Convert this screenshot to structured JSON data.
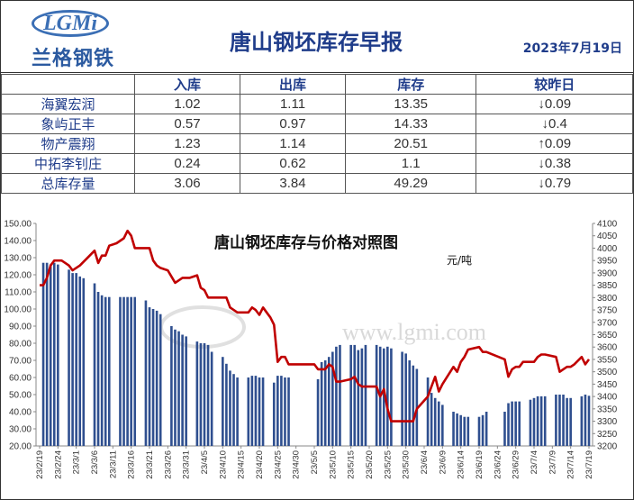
{
  "header": {
    "logo_text": "LGMi",
    "logo_cn": "兰格钢铁",
    "title": "唐山钢坯库存早报",
    "date": "2023年7月19日"
  },
  "table": {
    "columns": [
      "",
      "入库",
      "出库",
      "库存",
      "较昨日"
    ],
    "rows": [
      {
        "name": "海翼宏润",
        "in": "1.02",
        "out": "1.11",
        "stock": "13.35",
        "dir": "down",
        "arrow": "↓",
        "change": "0.09"
      },
      {
        "name": "象屿正丰",
        "in": "0.57",
        "out": "0.97",
        "stock": "14.33",
        "dir": "down",
        "arrow": "↓",
        "change": "0.4"
      },
      {
        "name": "物产震翔",
        "in": "1.23",
        "out": "1.14",
        "stock": "20.51",
        "dir": "up",
        "arrow": "↑",
        "change": "0.09"
      },
      {
        "name": "中拓李钊庄",
        "in": "0.24",
        "out": "0.62",
        "stock": "1.1",
        "dir": "down",
        "arrow": "↓",
        "change": "0.38"
      },
      {
        "name": "总库存量",
        "in": "3.06",
        "out": "3.84",
        "stock": "49.29",
        "dir": "down",
        "arrow": "↓",
        "change": "0.79"
      }
    ]
  },
  "chart_data": {
    "type": "bar+line",
    "title": "唐山钢坯库存与价格对照图",
    "y2_unit": "元/吨",
    "watermark": "www.lgmi.com",
    "ylim": [
      20,
      150
    ],
    "y_ticks": [
      20,
      30,
      40,
      50,
      60,
      70,
      80,
      90,
      100,
      110,
      120,
      130,
      140,
      150
    ],
    "y2lim": [
      3200,
      4100
    ],
    "y2_ticks": [
      3200,
      3250,
      3300,
      3350,
      3400,
      3450,
      3500,
      3550,
      3600,
      3650,
      3700,
      3750,
      3800,
      3850,
      3900,
      3950,
      4000,
      4050,
      4100
    ],
    "x_tick_labels": [
      "23/2/19",
      "23/2/24",
      "23/3/1",
      "23/3/6",
      "23/3/11",
      "23/3/16",
      "23/3/21",
      "23/3/26",
      "23/3/31",
      "23/4/5",
      "23/4/10",
      "23/4/15",
      "23/4/20",
      "23/4/25",
      "23/4/30",
      "23/5/5",
      "23/5/10",
      "23/5/15",
      "23/5/20",
      "23/5/25",
      "23/5/30",
      "23/6/4",
      "23/6/9",
      "23/6/14",
      "23/6/19",
      "23/6/24",
      "23/6/29",
      "23/7/4",
      "23/7/9",
      "23/7/14",
      "23/7/19"
    ],
    "x_start": "2023-02-19",
    "x_end": "2023-07-19",
    "bar_color": "#2f4f8f",
    "line_color": "#c00000",
    "bars": [
      [
        "2023-02-20",
        127
      ],
      [
        "2023-02-21",
        127
      ],
      [
        "2023-02-22",
        126
      ],
      [
        "2023-02-23",
        127
      ],
      [
        "2023-02-24",
        126
      ],
      [
        "2023-02-27",
        123
      ],
      [
        "2023-02-28",
        121
      ],
      [
        "2023-03-01",
        121
      ],
      [
        "2023-03-02",
        119
      ],
      [
        "2023-03-03",
        118
      ],
      [
        "2023-03-06",
        115
      ],
      [
        "2023-03-07",
        110
      ],
      [
        "2023-03-08",
        108
      ],
      [
        "2023-03-09",
        107
      ],
      [
        "2023-03-10",
        107
      ],
      [
        "2023-03-13",
        107
      ],
      [
        "2023-03-14",
        107
      ],
      [
        "2023-03-15",
        107
      ],
      [
        "2023-03-16",
        107
      ],
      [
        "2023-03-17",
        107
      ],
      [
        "2023-03-20",
        105
      ],
      [
        "2023-03-21",
        101
      ],
      [
        "2023-03-22",
        100
      ],
      [
        "2023-03-23",
        99
      ],
      [
        "2023-03-24",
        97
      ],
      [
        "2023-03-27",
        90
      ],
      [
        "2023-03-28",
        88
      ],
      [
        "2023-03-29",
        87
      ],
      [
        "2023-03-30",
        85
      ],
      [
        "2023-03-31",
        84
      ],
      [
        "2023-04-03",
        81
      ],
      [
        "2023-04-04",
        80
      ],
      [
        "2023-04-05",
        80
      ],
      [
        "2023-04-06",
        79
      ],
      [
        "2023-04-07",
        75
      ],
      [
        "2023-04-10",
        72
      ],
      [
        "2023-04-11",
        68
      ],
      [
        "2023-04-12",
        64
      ],
      [
        "2023-04-13",
        62
      ],
      [
        "2023-04-14",
        60
      ],
      [
        "2023-04-17",
        60
      ],
      [
        "2023-04-18",
        61
      ],
      [
        "2023-04-19",
        61
      ],
      [
        "2023-04-20",
        60
      ],
      [
        "2023-04-21",
        60
      ],
      [
        "2023-04-24",
        57
      ],
      [
        "2023-04-25",
        61
      ],
      [
        "2023-04-26",
        61
      ],
      [
        "2023-04-27",
        60
      ],
      [
        "2023-04-28",
        60
      ],
      [
        "2023-05-06",
        59
      ],
      [
        "2023-05-07",
        69
      ],
      [
        "2023-05-08",
        70
      ],
      [
        "2023-05-09",
        72
      ],
      [
        "2023-05-10",
        75
      ],
      [
        "2023-05-11",
        78
      ],
      [
        "2023-05-12",
        79
      ],
      [
        "2023-05-15",
        79
      ],
      [
        "2023-05-16",
        79
      ],
      [
        "2023-05-17",
        76
      ],
      [
        "2023-05-18",
        77
      ],
      [
        "2023-05-19",
        79
      ],
      [
        "2023-05-22",
        79
      ],
      [
        "2023-05-23",
        78
      ],
      [
        "2023-05-24",
        77
      ],
      [
        "2023-05-25",
        78
      ],
      [
        "2023-05-26",
        77
      ],
      [
        "2023-05-29",
        75
      ],
      [
        "2023-05-30",
        74
      ],
      [
        "2023-05-31",
        70
      ],
      [
        "2023-06-01",
        67
      ],
      [
        "2023-06-02",
        65
      ],
      [
        "2023-06-05",
        60
      ],
      [
        "2023-06-06",
        51
      ],
      [
        "2023-06-07",
        48
      ],
      [
        "2023-06-08",
        46
      ],
      [
        "2023-06-09",
        44
      ],
      [
        "2023-06-12",
        40
      ],
      [
        "2023-06-13",
        39
      ],
      [
        "2023-06-14",
        38
      ],
      [
        "2023-06-15",
        37
      ],
      [
        "2023-06-16",
        37
      ],
      [
        "2023-06-19",
        37
      ],
      [
        "2023-06-20",
        38
      ],
      [
        "2023-06-21",
        40
      ],
      [
        "2023-06-26",
        40
      ],
      [
        "2023-06-27",
        45
      ],
      [
        "2023-06-28",
        46
      ],
      [
        "2023-06-29",
        46
      ],
      [
        "2023-06-30",
        46
      ],
      [
        "2023-07-03",
        47
      ],
      [
        "2023-07-04",
        48
      ],
      [
        "2023-07-05",
        49
      ],
      [
        "2023-07-06",
        49
      ],
      [
        "2023-07-07",
        49
      ],
      [
        "2023-07-10",
        50
      ],
      [
        "2023-07-11",
        50
      ],
      [
        "2023-07-12",
        50
      ],
      [
        "2023-07-13",
        48
      ],
      [
        "2023-07-14",
        48
      ],
      [
        "2023-07-17",
        49
      ],
      [
        "2023-07-18",
        50
      ],
      [
        "2023-07-19",
        49.3
      ]
    ],
    "price": [
      [
        "2023-02-19",
        3850
      ],
      [
        "2023-02-20",
        3850
      ],
      [
        "2023-02-21",
        3880
      ],
      [
        "2023-02-22",
        3930
      ],
      [
        "2023-02-23",
        3950
      ],
      [
        "2023-02-25",
        3950
      ],
      [
        "2023-02-26",
        3940
      ],
      [
        "2023-02-27",
        3930
      ],
      [
        "2023-02-28",
        3910
      ],
      [
        "2023-03-02",
        3930
      ],
      [
        "2023-03-04",
        3960
      ],
      [
        "2023-03-06",
        3990
      ],
      [
        "2023-03-07",
        3940
      ],
      [
        "2023-03-08",
        3970
      ],
      [
        "2023-03-09",
        3970
      ],
      [
        "2023-03-10",
        4010
      ],
      [
        "2023-03-12",
        4020
      ],
      [
        "2023-03-14",
        4040
      ],
      [
        "2023-03-15",
        4070
      ],
      [
        "2023-03-16",
        4050
      ],
      [
        "2023-03-17",
        4000
      ],
      [
        "2023-03-21",
        4000
      ],
      [
        "2023-03-22",
        3950
      ],
      [
        "2023-03-23",
        3930
      ],
      [
        "2023-03-24",
        3920
      ],
      [
        "2023-03-26",
        3910
      ],
      [
        "2023-03-28",
        3860
      ],
      [
        "2023-03-30",
        3880
      ],
      [
        "2023-04-01",
        3880
      ],
      [
        "2023-04-03",
        3890
      ],
      [
        "2023-04-04",
        3840
      ],
      [
        "2023-04-05",
        3830
      ],
      [
        "2023-04-06",
        3800
      ],
      [
        "2023-04-11",
        3800
      ],
      [
        "2023-04-12",
        3760
      ],
      [
        "2023-04-14",
        3740
      ],
      [
        "2023-04-17",
        3740
      ],
      [
        "2023-04-18",
        3760
      ],
      [
        "2023-04-19",
        3750
      ],
      [
        "2023-04-20",
        3730
      ],
      [
        "2023-04-21",
        3760
      ],
      [
        "2023-04-22",
        3740
      ],
      [
        "2023-04-23",
        3720
      ],
      [
        "2023-04-24",
        3690
      ],
      [
        "2023-04-25",
        3540
      ],
      [
        "2023-04-26",
        3560
      ],
      [
        "2023-04-27",
        3560
      ],
      [
        "2023-04-28",
        3530
      ],
      [
        "2023-05-05",
        3530
      ],
      [
        "2023-05-06",
        3510
      ],
      [
        "2023-05-08",
        3510
      ],
      [
        "2023-05-09",
        3530
      ],
      [
        "2023-05-10",
        3520
      ],
      [
        "2023-05-11",
        3460
      ],
      [
        "2023-05-12",
        3460
      ],
      [
        "2023-05-15",
        3470
      ],
      [
        "2023-05-16",
        3480
      ],
      [
        "2023-05-17",
        3450
      ],
      [
        "2023-05-18",
        3440
      ],
      [
        "2023-05-19",
        3440
      ],
      [
        "2023-05-22",
        3440
      ],
      [
        "2023-05-23",
        3400
      ],
      [
        "2023-05-24",
        3430
      ],
      [
        "2023-05-25",
        3350
      ],
      [
        "2023-05-26",
        3300
      ],
      [
        "2023-05-31",
        3300
      ],
      [
        "2023-06-01",
        3300
      ],
      [
        "2023-06-02",
        3350
      ],
      [
        "2023-06-05",
        3400
      ],
      [
        "2023-06-06",
        3440
      ],
      [
        "2023-06-07",
        3480
      ],
      [
        "2023-06-08",
        3420
      ],
      [
        "2023-06-09",
        3450
      ],
      [
        "2023-06-12",
        3520
      ],
      [
        "2023-06-13",
        3500
      ],
      [
        "2023-06-14",
        3540
      ],
      [
        "2023-06-15",
        3560
      ],
      [
        "2023-06-16",
        3590
      ],
      [
        "2023-06-19",
        3600
      ],
      [
        "2023-06-20",
        3580
      ],
      [
        "2023-06-21",
        3580
      ],
      [
        "2023-06-26",
        3550
      ],
      [
        "2023-06-27",
        3480
      ],
      [
        "2023-06-28",
        3510
      ],
      [
        "2023-06-29",
        3520
      ],
      [
        "2023-06-30",
        3520
      ],
      [
        "2023-07-01",
        3540
      ],
      [
        "2023-07-04",
        3540
      ],
      [
        "2023-07-05",
        3560
      ],
      [
        "2023-07-06",
        3570
      ],
      [
        "2023-07-07",
        3570
      ],
      [
        "2023-07-10",
        3560
      ],
      [
        "2023-07-11",
        3500
      ],
      [
        "2023-07-12",
        3510
      ],
      [
        "2023-07-13",
        3520
      ],
      [
        "2023-07-14",
        3520
      ],
      [
        "2023-07-15",
        3530
      ],
      [
        "2023-07-17",
        3560
      ],
      [
        "2023-07-18",
        3530
      ],
      [
        "2023-07-19",
        3550
      ]
    ]
  }
}
